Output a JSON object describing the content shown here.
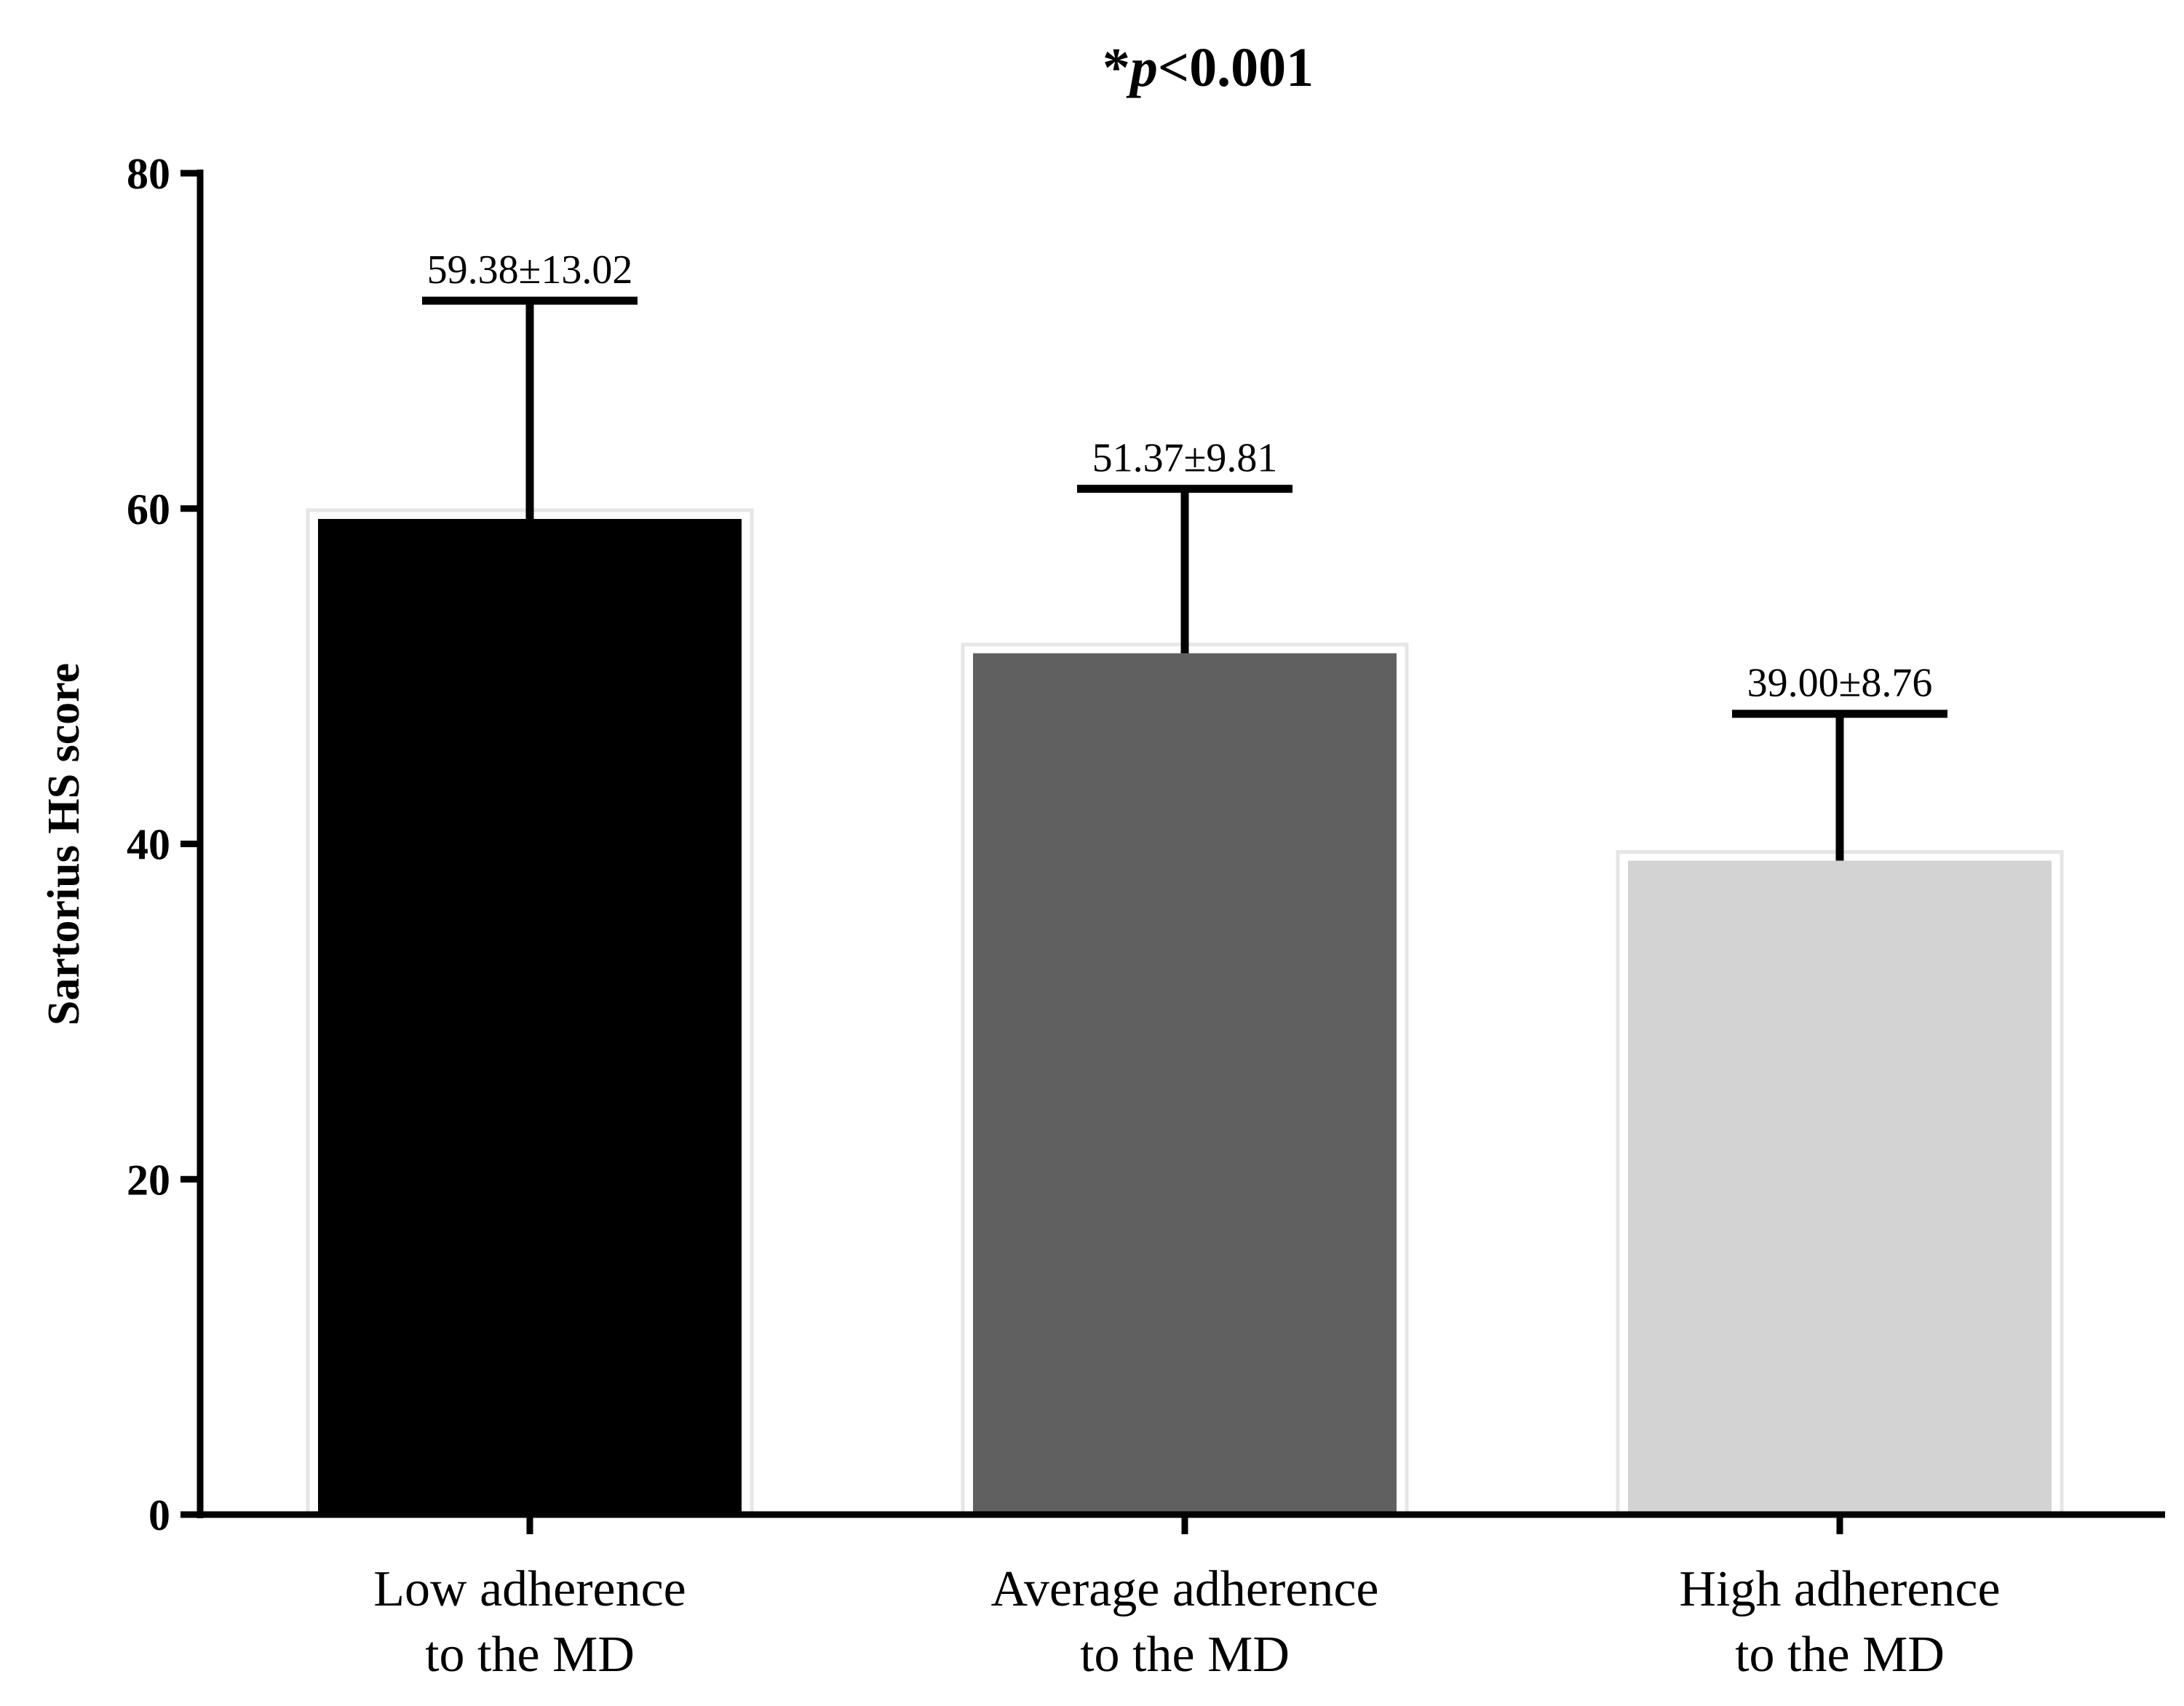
{
  "chart_data": {
    "type": "bar",
    "title_prefix": "*",
    "title_italic": "p",
    "title_suffix": "<0.001",
    "ylabel": "Sartorius HS score",
    "xlabel": "",
    "ylim": [
      0,
      80
    ],
    "yticks": [
      0,
      20,
      40,
      60,
      80
    ],
    "ytick_labels": [
      "0",
      "20",
      "40",
      "60",
      "80"
    ],
    "categories": [
      {
        "line1": "Low adherence",
        "line2": "to the MD"
      },
      {
        "line1": "Average adherence",
        "line2": "to the MD"
      },
      {
        "line1": "High adherence",
        "line2": "to the MD"
      }
    ],
    "values": [
      59.38,
      51.37,
      39.0
    ],
    "errors": [
      13.02,
      9.81,
      8.76
    ],
    "data_labels": [
      "59.38±13.02",
      "51.37±9.81",
      "39.00±8.76"
    ],
    "colors": [
      "#000000",
      "#606060",
      "#d3d3d3"
    ],
    "grid": false
  }
}
